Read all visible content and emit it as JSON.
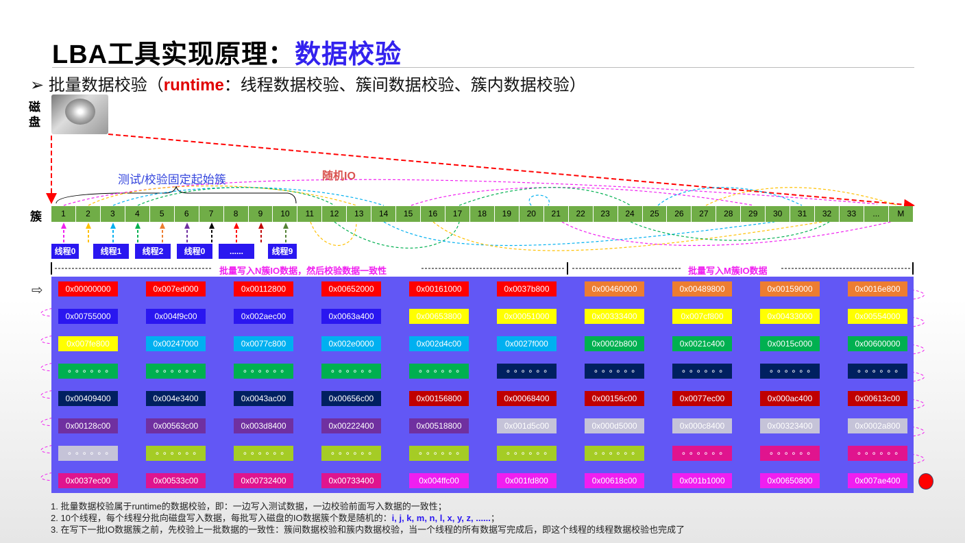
{
  "title": {
    "main": "LBA工具实现原理：",
    "highlight": "数据校验"
  },
  "bullet": {
    "prefix": "批量数据校验（",
    "runtime": "runtime",
    "suffix": "：线程数据校验、簇间数据校验、簇内数据校验）"
  },
  "disk_label": "磁盘",
  "cluster_label": "簇",
  "fixed_start_label": "测试/校验固定起始簇",
  "random_io_label": "随机IO",
  "clusters": [
    "1",
    "2",
    "3",
    "4",
    "5",
    "6",
    "7",
    "8",
    "9",
    "10",
    "11",
    "12",
    "13",
    "14",
    "15",
    "16",
    "17",
    "18",
    "19",
    "20",
    "21",
    "22",
    "23",
    "24",
    "25",
    "26",
    "27",
    "28",
    "29",
    "30",
    "31",
    "32",
    "33",
    "...",
    "M"
  ],
  "threads": [
    "线程0",
    "线程1",
    "线程2",
    "线程0",
    "......",
    "线程9"
  ],
  "thread_arrow_colors": [
    "#f020f0",
    "#ffc000",
    "#00b0f0",
    "#00b050",
    "#ed7d31",
    "#7030a0",
    "#000000",
    "#ff0000",
    "#c00000",
    "#548235"
  ],
  "spans": {
    "n": "批量写入N簇IO数据，然后校验数据一致性",
    "m": "批量写入M簇IO数据"
  },
  "colors": {
    "red": "#ff0000",
    "orange": "#ed7d31",
    "blue": "#2a17f0",
    "yellow": "#ffff00",
    "cyan": "#00b0f0",
    "green": "#00b050",
    "navy": "#002060",
    "darkred": "#c00000",
    "purple": "#7030a0",
    "gray": "#c5c3d8",
    "lime": "#a5cc25",
    "pink": "#e0148e",
    "magenta": "#f01ef0"
  },
  "grid": [
    [
      [
        "0x00000000",
        "red"
      ],
      [
        "0x007ed000",
        "red"
      ],
      [
        "0x00112800",
        "red"
      ],
      [
        "0x00652000",
        "red"
      ],
      [
        "0x00161000",
        "red"
      ],
      [
        "0x0037b800",
        "red"
      ],
      [
        "0x00460000",
        "orange"
      ],
      [
        "0x00489800",
        "orange"
      ],
      [
        "0x00159000",
        "orange"
      ],
      [
        "0x0016e800",
        "orange"
      ]
    ],
    [
      [
        "0x00755000",
        "blue"
      ],
      [
        "0x004f9c00",
        "blue"
      ],
      [
        "0x002aec00",
        "blue"
      ],
      [
        "0x0063a400",
        "blue"
      ],
      [
        "0x00653800",
        "yellow"
      ],
      [
        "0x00051000",
        "yellow"
      ],
      [
        "0x00333400",
        "yellow"
      ],
      [
        "0x007cf800",
        "yellow"
      ],
      [
        "0x00433000",
        "yellow"
      ],
      [
        "0x00554000",
        "yellow"
      ]
    ],
    [
      [
        "0x007fe800",
        "yellow"
      ],
      [
        "0x00247000",
        "cyan"
      ],
      [
        "0x0077c800",
        "cyan"
      ],
      [
        "0x002e0000",
        "cyan"
      ],
      [
        "0x002d4c00",
        "cyan"
      ],
      [
        "0x0027f000",
        "cyan"
      ],
      [
        "0x0002b800",
        "green"
      ],
      [
        "0x0021c400",
        "green"
      ],
      [
        "0x0015c000",
        "green"
      ],
      [
        "0x00600000",
        "green"
      ]
    ],
    [
      [
        "∘ ∘ ∘ ∘ ∘ ∘",
        "green"
      ],
      [
        "∘ ∘ ∘ ∘ ∘ ∘",
        "green"
      ],
      [
        "∘ ∘ ∘ ∘ ∘ ∘",
        "green"
      ],
      [
        "∘ ∘ ∘ ∘ ∘ ∘",
        "green"
      ],
      [
        "∘ ∘ ∘ ∘ ∘ ∘",
        "green"
      ],
      [
        "∘ ∘ ∘ ∘ ∘ ∘",
        "navy"
      ],
      [
        "∘ ∘ ∘ ∘ ∘ ∘",
        "navy"
      ],
      [
        "∘ ∘ ∘ ∘ ∘ ∘",
        "navy"
      ],
      [
        "∘ ∘ ∘ ∘ ∘ ∘",
        "navy"
      ],
      [
        "∘ ∘ ∘ ∘ ∘ ∘",
        "navy"
      ]
    ],
    [
      [
        "0x00409400",
        "navy"
      ],
      [
        "0x004e3400",
        "navy"
      ],
      [
        "0x0043ac00",
        "navy"
      ],
      [
        "0x00656c00",
        "navy"
      ],
      [
        "0x00156800",
        "darkred"
      ],
      [
        "0x00068400",
        "darkred"
      ],
      [
        "0x00156c00",
        "darkred"
      ],
      [
        "0x0077ec00",
        "darkred"
      ],
      [
        "0x000ac400",
        "darkred"
      ],
      [
        "0x00613c00",
        "darkred"
      ]
    ],
    [
      [
        "0x00128c00",
        "purple"
      ],
      [
        "0x00563c00",
        "purple"
      ],
      [
        "0x003d8400",
        "purple"
      ],
      [
        "0x00222400",
        "purple"
      ],
      [
        "0x00518800",
        "purple"
      ],
      [
        "0x001d5c00",
        "gray"
      ],
      [
        "0x000d5000",
        "gray"
      ],
      [
        "0x000c8400",
        "gray"
      ],
      [
        "0x00323400",
        "gray"
      ],
      [
        "0x0002a800",
        "gray"
      ]
    ],
    [
      [
        "∘ ∘ ∘ ∘ ∘ ∘",
        "gray"
      ],
      [
        "∘ ∘ ∘ ∘ ∘ ∘",
        "lime"
      ],
      [
        "∘ ∘ ∘ ∘ ∘ ∘",
        "lime"
      ],
      [
        "∘ ∘ ∘ ∘ ∘ ∘",
        "lime"
      ],
      [
        "∘ ∘ ∘ ∘ ∘ ∘",
        "lime"
      ],
      [
        "∘ ∘ ∘ ∘ ∘ ∘",
        "lime"
      ],
      [
        "∘ ∘ ∘ ∘ ∘ ∘",
        "lime"
      ],
      [
        "∘ ∘ ∘ ∘ ∘ ∘",
        "pink"
      ],
      [
        "∘ ∘ ∘ ∘ ∘ ∘",
        "pink"
      ],
      [
        "∘ ∘ ∘ ∘ ∘ ∘",
        "pink"
      ]
    ],
    [
      [
        "0x0037ec00",
        "pink"
      ],
      [
        "0x00533c00",
        "pink"
      ],
      [
        "0x00732400",
        "pink"
      ],
      [
        "0x00733400",
        "pink"
      ],
      [
        "0x004ffc00",
        "magenta"
      ],
      [
        "0x001fd800",
        "magenta"
      ],
      [
        "0x00618c00",
        "magenta"
      ],
      [
        "0x001b1000",
        "magenta"
      ],
      [
        "0x00650800",
        "magenta"
      ],
      [
        "0x007ae400",
        "magenta"
      ]
    ]
  ],
  "notes": {
    "n1": "1. 批量数据校验属于runtime的数据校验，即：一边写入测试数据，一边校验前面写入数据的一致性；",
    "n2_prefix": "2. 10个线程，每个线程分批向磁盘写入数据，每批写入磁盘的IO数据簇个数是随机的：",
    "n2_vars": "i, j, k, m, n, l, x, y, z, ......",
    "n2_suffix": "；",
    "n3": "3. 在写下一批IO数据簇之前，先校验上一批数据的一致性：簇间数据校验和簇内数据校验，当一个线程的所有数据写完成后，即这个线程的线程数据校验也完成了"
  }
}
